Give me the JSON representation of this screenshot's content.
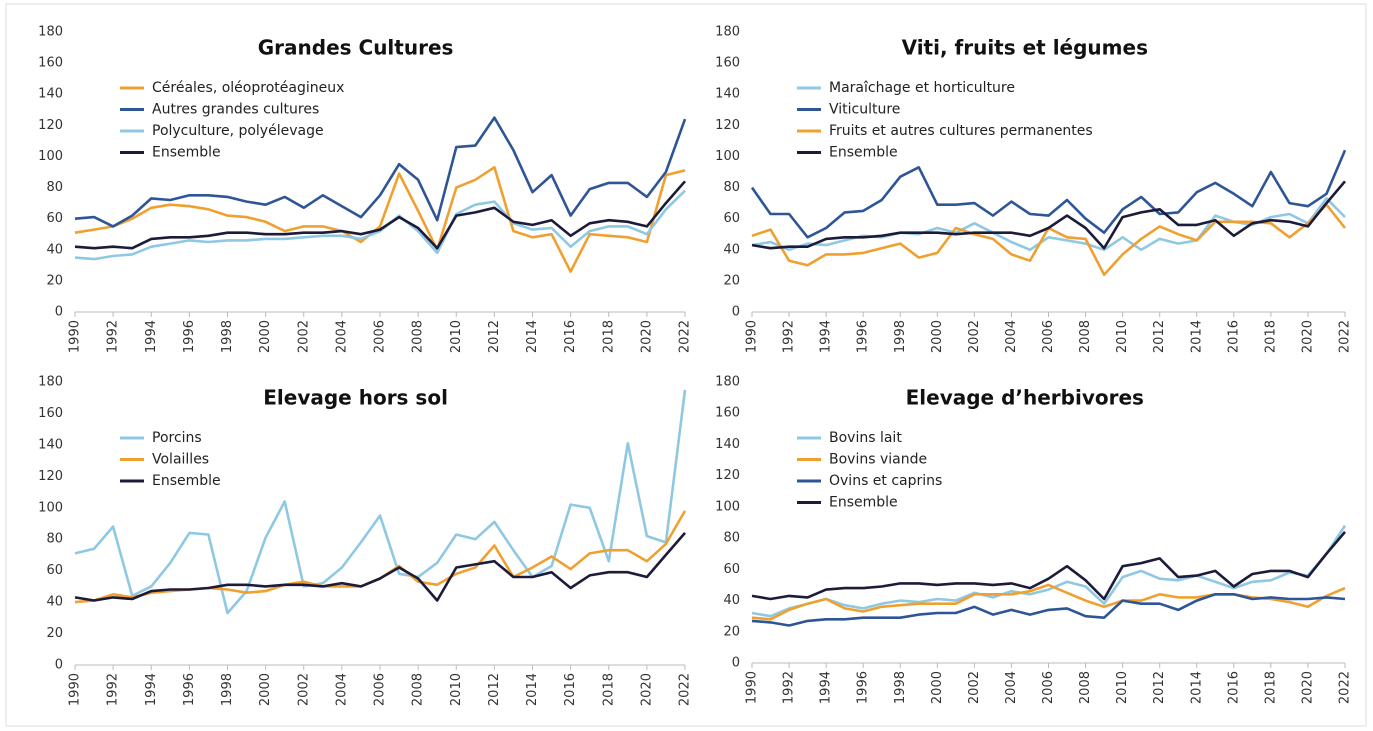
{
  "chart_data": [
    {
      "type": "line",
      "title": "Grandes Cultures",
      "x": [
        1990,
        1991,
        1992,
        1993,
        1994,
        1995,
        1996,
        1997,
        1998,
        1999,
        2000,
        2001,
        2002,
        2003,
        2004,
        2005,
        2006,
        2007,
        2008,
        2009,
        2010,
        2011,
        2012,
        2013,
        2014,
        2015,
        2016,
        2017,
        2018,
        2019,
        2020,
        2021,
        2022
      ],
      "xlim": [
        1990,
        2022
      ],
      "xticks": [
        1990,
        1992,
        1994,
        1996,
        1998,
        2000,
        2002,
        2004,
        2006,
        2008,
        2010,
        2012,
        2014,
        2016,
        2018,
        2020,
        2022
      ],
      "ylim": [
        0,
        180
      ],
      "yticks": [
        0,
        20,
        40,
        60,
        80,
        100,
        120,
        140,
        160,
        180
      ],
      "grid": false,
      "legend": "upper left",
      "series": [
        {
          "name": "Céréales, oléoprotéagineux",
          "color": "#f0a030",
          "values": [
            51,
            53,
            55,
            60,
            67,
            69,
            68,
            66,
            62,
            61,
            58,
            52,
            55,
            55,
            52,
            45,
            55,
            89,
            65,
            40,
            80,
            85,
            93,
            52,
            48,
            50,
            26,
            50,
            49,
            48,
            45,
            88,
            91
          ]
        },
        {
          "name": "Autres grandes cultures",
          "color": "#2e5596",
          "values": [
            60,
            61,
            55,
            62,
            73,
            72,
            75,
            75,
            74,
            71,
            69,
            74,
            67,
            75,
            68,
            61,
            75,
            95,
            85,
            59,
            106,
            107,
            125,
            104,
            77,
            88,
            62,
            79,
            83,
            83,
            74,
            90,
            124
          ]
        },
        {
          "name": "Polyculture, polyélevage",
          "color": "#8fc8e3",
          "values": [
            35,
            34,
            36,
            37,
            42,
            44,
            46,
            45,
            46,
            46,
            47,
            47,
            48,
            49,
            49,
            47,
            52,
            62,
            52,
            38,
            63,
            69,
            71,
            57,
            53,
            54,
            42,
            52,
            55,
            55,
            50,
            66,
            78
          ]
        },
        {
          "name": "Ensemble",
          "color": "#1c1c3a",
          "values": [
            42,
            41,
            42,
            41,
            47,
            48,
            48,
            49,
            51,
            51,
            50,
            50,
            51,
            51,
            52,
            50,
            53,
            61,
            54,
            41,
            62,
            64,
            67,
            58,
            56,
            59,
            49,
            57,
            59,
            58,
            55,
            70,
            84
          ]
        }
      ]
    },
    {
      "type": "line",
      "title": "Viti, fruits et légumes",
      "x": [
        1990,
        1991,
        1992,
        1993,
        1994,
        1995,
        1996,
        1997,
        1998,
        1999,
        2000,
        2001,
        2002,
        2003,
        2004,
        2005,
        2006,
        2007,
        2008,
        2009,
        2010,
        2011,
        2012,
        2013,
        2014,
        2015,
        2016,
        2017,
        2018,
        2019,
        2020,
        2021,
        2022
      ],
      "xlim": [
        1990,
        2022
      ],
      "xticks": [
        1990,
        1992,
        1994,
        1996,
        1998,
        2000,
        2002,
        2004,
        2006,
        2008,
        2010,
        2012,
        2014,
        2016,
        2018,
        2020,
        2022
      ],
      "ylim": [
        0,
        180
      ],
      "yticks": [
        0,
        20,
        40,
        60,
        80,
        100,
        120,
        140,
        160,
        180
      ],
      "grid": false,
      "legend": "upper left",
      "series": [
        {
          "name": "Maraîchage et horticulture",
          "color": "#8fc8e3",
          "values": [
            43,
            45,
            40,
            44,
            43,
            46,
            49,
            48,
            51,
            50,
            54,
            51,
            57,
            51,
            45,
            40,
            48,
            46,
            44,
            40,
            48,
            40,
            47,
            44,
            46,
            62,
            58,
            56,
            61,
            63,
            57,
            73,
            61
          ]
        },
        {
          "name": "Viticulture",
          "color": "#2e5596",
          "values": [
            80,
            63,
            63,
            48,
            54,
            64,
            65,
            72,
            87,
            93,
            69,
            69,
            70,
            62,
            71,
            63,
            62,
            72,
            60,
            51,
            66,
            74,
            63,
            64,
            77,
            83,
            76,
            68,
            90,
            70,
            68,
            76,
            104
          ]
        },
        {
          "name": "Fruits et autres cultures permanentes",
          "color": "#f0a030",
          "values": [
            49,
            53,
            33,
            30,
            37,
            37,
            38,
            41,
            44,
            35,
            38,
            54,
            50,
            47,
            37,
            33,
            54,
            48,
            47,
            24,
            37,
            47,
            55,
            50,
            46,
            58,
            58,
            58,
            57,
            48,
            57,
            69,
            54
          ]
        },
        {
          "name": "Ensemble",
          "color": "#1c1c3a",
          "values": [
            43,
            41,
            42,
            42,
            47,
            48,
            48,
            49,
            51,
            51,
            51,
            50,
            51,
            51,
            51,
            49,
            54,
            62,
            54,
            41,
            61,
            64,
            66,
            56,
            56,
            59,
            49,
            57,
            59,
            58,
            55,
            70,
            84
          ]
        }
      ]
    },
    {
      "type": "line",
      "title": "Elevage hors sol",
      "x": [
        1990,
        1991,
        1992,
        1993,
        1994,
        1995,
        1996,
        1997,
        1998,
        1999,
        2000,
        2001,
        2002,
        2003,
        2004,
        2005,
        2006,
        2007,
        2008,
        2009,
        2010,
        2011,
        2012,
        2013,
        2014,
        2015,
        2016,
        2017,
        2018,
        2019,
        2020,
        2021,
        2022
      ],
      "xlim": [
        1990,
        2022
      ],
      "xticks": [
        1990,
        1992,
        1994,
        1996,
        1998,
        2000,
        2002,
        2004,
        2006,
        2008,
        2010,
        2012,
        2014,
        2016,
        2018,
        2020,
        2022
      ],
      "ylim": [
        0,
        180
      ],
      "yticks": [
        0,
        20,
        40,
        60,
        80,
        100,
        120,
        140,
        160,
        180
      ],
      "grid": false,
      "legend": "upper left",
      "series": [
        {
          "name": "Porcins",
          "color": "#8fc8e3",
          "values": [
            71,
            74,
            88,
            44,
            50,
            65,
            84,
            83,
            33,
            47,
            81,
            104,
            50,
            52,
            62,
            78,
            95,
            58,
            56,
            65,
            83,
            80,
            91,
            73,
            56,
            63,
            102,
            100,
            66,
            141,
            82,
            78,
            175
          ]
        },
        {
          "name": "Volailles",
          "color": "#f0a030",
          "values": [
            40,
            41,
            45,
            43,
            46,
            47,
            48,
            49,
            48,
            46,
            47,
            51,
            53,
            50,
            50,
            50,
            55,
            63,
            53,
            51,
            58,
            62,
            76,
            56,
            62,
            69,
            61,
            71,
            73,
            73,
            66,
            77,
            98
          ]
        },
        {
          "name": "Ensemble",
          "color": "#1c1c3a",
          "values": [
            43,
            41,
            43,
            42,
            47,
            48,
            48,
            49,
            51,
            51,
            50,
            51,
            51,
            50,
            52,
            50,
            55,
            62,
            55,
            41,
            62,
            64,
            66,
            56,
            56,
            59,
            49,
            57,
            59,
            59,
            56,
            70,
            84
          ]
        }
      ]
    },
    {
      "type": "line",
      "title": "Elevage d’herbivores",
      "x": [
        1990,
        1991,
        1992,
        1993,
        1994,
        1995,
        1996,
        1997,
        1998,
        1999,
        2000,
        2001,
        2002,
        2003,
        2004,
        2005,
        2006,
        2007,
        2008,
        2009,
        2010,
        2011,
        2012,
        2013,
        2014,
        2015,
        2016,
        2017,
        2018,
        2019,
        2020,
        2021,
        2022
      ],
      "xlim": [
        1990,
        2022
      ],
      "xticks": [
        1990,
        1992,
        1994,
        1996,
        1998,
        2000,
        2002,
        2004,
        2006,
        2008,
        2010,
        2012,
        2014,
        2016,
        2018,
        2020,
        2022
      ],
      "ylim": [
        0,
        180
      ],
      "yticks": [
        0,
        20,
        40,
        60,
        80,
        100,
        120,
        140,
        160,
        180
      ],
      "grid": false,
      "legend": "upper left",
      "series": [
        {
          "name": "Bovins lait",
          "color": "#8fc8e3",
          "values": [
            32,
            30,
            35,
            38,
            41,
            37,
            35,
            38,
            40,
            39,
            41,
            40,
            45,
            42,
            46,
            44,
            47,
            52,
            49,
            38,
            55,
            59,
            54,
            53,
            56,
            52,
            48,
            52,
            53,
            58,
            56,
            70,
            88
          ]
        },
        {
          "name": "Bovins viande",
          "color": "#f0a030",
          "values": [
            29,
            28,
            34,
            38,
            41,
            35,
            33,
            36,
            37,
            38,
            38,
            38,
            44,
            44,
            44,
            46,
            50,
            45,
            40,
            36,
            40,
            40,
            44,
            42,
            42,
            44,
            44,
            42,
            41,
            39,
            36,
            43,
            48
          ]
        },
        {
          "name": "Ovins et caprins",
          "color": "#2e5596",
          "values": [
            27,
            26,
            24,
            27,
            28,
            28,
            29,
            29,
            29,
            31,
            32,
            32,
            36,
            31,
            34,
            31,
            34,
            35,
            30,
            29,
            40,
            38,
            38,
            34,
            40,
            44,
            44,
            41,
            42,
            41,
            41,
            42,
            41
          ]
        },
        {
          "name": "Ensemble",
          "color": "#1c1c3a",
          "values": [
            43,
            41,
            43,
            42,
            47,
            48,
            48,
            49,
            51,
            51,
            50,
            51,
            51,
            50,
            51,
            48,
            54,
            62,
            53,
            41,
            62,
            64,
            67,
            55,
            56,
            59,
            49,
            57,
            59,
            59,
            55,
            70,
            84
          ]
        }
      ]
    }
  ]
}
